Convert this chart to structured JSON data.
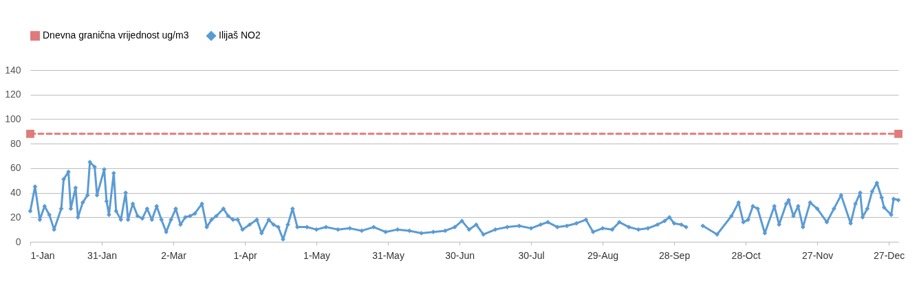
{
  "chart_data": {
    "type": "line",
    "legend": "top",
    "grid": "y",
    "xlim": [
      "--01-01",
      "--12-31"
    ],
    "xticks": [
      {
        "value": "--01-01",
        "label": "1-Jan"
      },
      {
        "value": "--01-31",
        "label": "31-Jan"
      },
      {
        "value": "--03-02",
        "label": "2-Mar"
      },
      {
        "value": "--04-01",
        "label": "1-Apr"
      },
      {
        "value": "--05-01",
        "label": "1-May"
      },
      {
        "value": "--05-31",
        "label": "31-May"
      },
      {
        "value": "--06-30",
        "label": "30-Jun"
      },
      {
        "value": "--07-30",
        "label": "30-Jul"
      },
      {
        "value": "--08-29",
        "label": "29-Aug"
      },
      {
        "value": "--09-28",
        "label": "28-Sep"
      },
      {
        "value": "--10-28",
        "label": "28-Oct"
      },
      {
        "value": "--11-27",
        "label": "27-Nov"
      },
      {
        "value": "--12-27",
        "label": "27-Dec"
      }
    ],
    "ylim": [
      0,
      140
    ],
    "yticks": [
      0,
      20,
      40,
      60,
      80,
      100,
      120,
      140
    ],
    "series": [
      {
        "name": "Dnevna granična vrijednost ug/m3",
        "color": "#e07b7b",
        "marker": "square",
        "line_style": "dashed",
        "x": [
          "--01-01",
          "--12-31"
        ],
        "values": [
          88,
          88
        ]
      },
      {
        "name": "Ilijaš NO2",
        "color": "#5b9bd5",
        "marker": "diamond",
        "line_style": "solid",
        "x": [
          "--01-01",
          "--01-03",
          "--01-05",
          "--01-07",
          "--01-09",
          "--01-11",
          "--01-14",
          "--01-15",
          "--01-17",
          "--01-18",
          "--01-20",
          "--01-21",
          "--01-23",
          "--01-25",
          "--01-26",
          "--01-28",
          "--01-29",
          "--02-01",
          "--02-02",
          "--02-03",
          "--02-05",
          "--02-06",
          "--02-08",
          "--02-10",
          "--02-11",
          "--02-13",
          "--02-15",
          "--02-17",
          "--02-19",
          "--02-21",
          "--02-23",
          "--02-25",
          "--02-27",
          "--03-01",
          "--03-03",
          "--03-05",
          "--03-07",
          "--03-09",
          "--03-11",
          "--03-14",
          "--03-16",
          "--03-18",
          "--03-20",
          "--03-23",
          "--03-25",
          "--03-27",
          "--03-29",
          "--03-31",
          "--04-03",
          "--04-06",
          "--04-08",
          "--04-11",
          "--04-13",
          "--04-15",
          "--04-17",
          "--04-19",
          "--04-21",
          "--04-23",
          "--04-27",
          "--05-01",
          "--05-05",
          "--05-10",
          "--05-15",
          "--05-20",
          "--05-25",
          "--05-30",
          "--06-04",
          "--06-09",
          "--06-14",
          "--06-19",
          "--06-24",
          "--06-28",
          "--07-01",
          "--07-04",
          "--07-07",
          "--07-10",
          "--07-15",
          "--07-20",
          "--07-25",
          "--07-30",
          "--08-03",
          "--08-06",
          "--08-10",
          "--08-14",
          "--08-18",
          "--08-22",
          "--08-25",
          "--08-29",
          "--09-02",
          "--09-05",
          "--09-09",
          "--09-13",
          "--09-17",
          "--09-21",
          "--09-24",
          "--09-26",
          "--09-28",
          "--10-01",
          "--10-03",
          "--10-06",
          "--10-10",
          "--10-16",
          "--10-22",
          "--10-25",
          "--10-27",
          "--10-29",
          "--10-31",
          "--11-02",
          "--11-05",
          "--11-09",
          "--11-11",
          "--11-14",
          "--11-15",
          "--11-17",
          "--11-19",
          "--11-21",
          "--11-24",
          "--11-27",
          "--12-01",
          "--12-04",
          "--12-07",
          "--12-11",
          "--12-13",
          "--12-15",
          "--12-16",
          "--12-18",
          "--12-20",
          "--12-22",
          "--12-24",
          "--12-25",
          "--12-28",
          "--12-29",
          "--12-31"
        ],
        "values": [
          25,
          45,
          18,
          29,
          22,
          10,
          27,
          51,
          57,
          27,
          44,
          20,
          32,
          38,
          65,
          61,
          38,
          59,
          33,
          22,
          56,
          25,
          18,
          40,
          18,
          31,
          21,
          19,
          27,
          18,
          29,
          18,
          8,
          18,
          27,
          14,
          20,
          21,
          23,
          31,
          12,
          18,
          21,
          27,
          21,
          18,
          18,
          10,
          14,
          18,
          7,
          18,
          14,
          12,
          2,
          14,
          27,
          12,
          12,
          10,
          12,
          10,
          11,
          9,
          12,
          8,
          10,
          9,
          7,
          8,
          9,
          12,
          17,
          10,
          14,
          6,
          10,
          12,
          13,
          11,
          14,
          16,
          12,
          13,
          15,
          18,
          8,
          11,
          10,
          16,
          12,
          10,
          11,
          14,
          17,
          20,
          15,
          14,
          12,
          null,
          13,
          6,
          21,
          32,
          16,
          18,
          29,
          27,
          7,
          29,
          14,
          31,
          34,
          21,
          29,
          12,
          32,
          27,
          16,
          27,
          38,
          15,
          31,
          40,
          20,
          27,
          41,
          48,
          36,
          28,
          22,
          35,
          34
        ]
      }
    ]
  }
}
